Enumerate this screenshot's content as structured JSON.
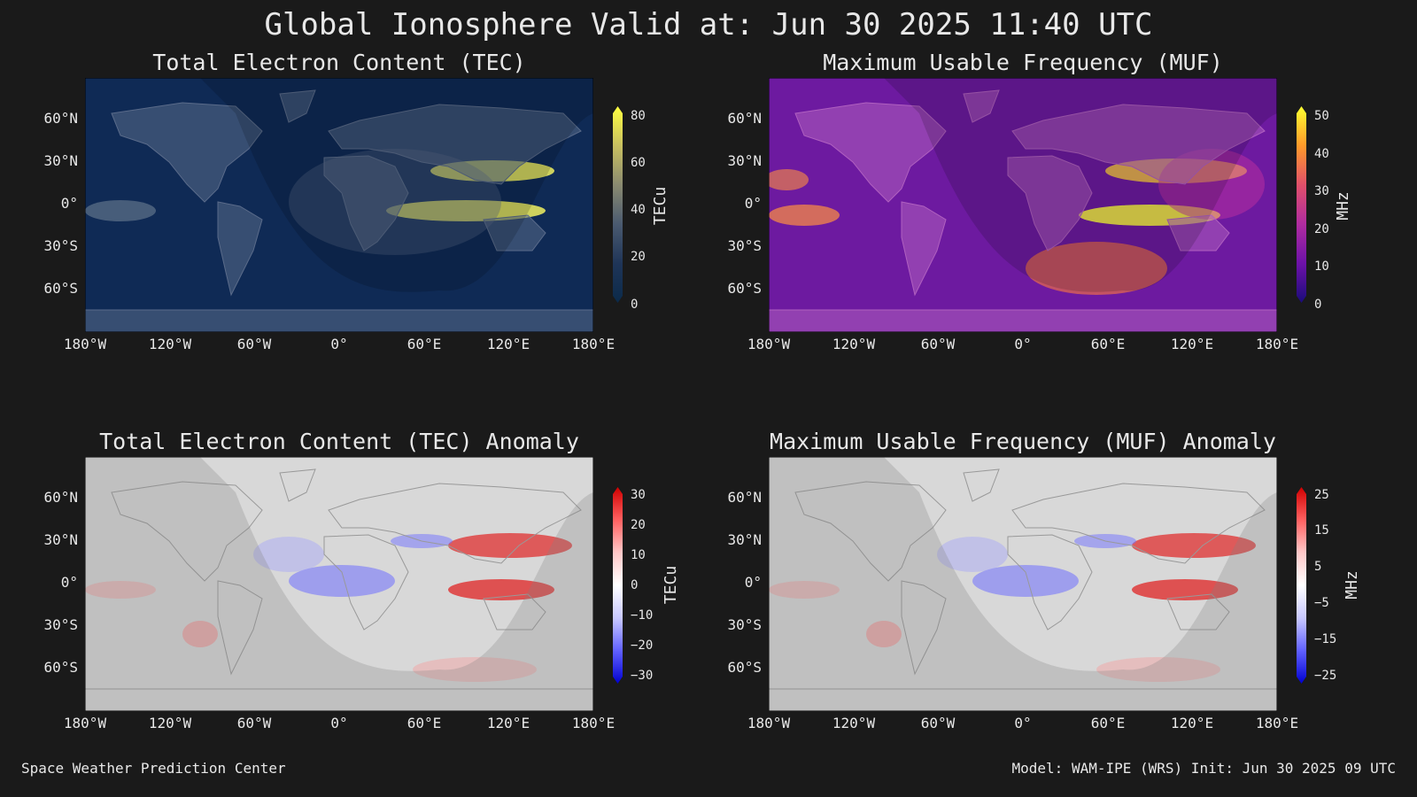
{
  "title": "Global Ionosphere Valid at: Jun 30 2025 11:40 UTC",
  "lat_ticks": [
    "60°N",
    "30°N",
    "0°",
    "30°S",
    "60°S"
  ],
  "lon_ticks": [
    "180°W",
    "120°W",
    "60°W",
    "0°",
    "60°E",
    "120°E",
    "180°E"
  ],
  "panels": [
    {
      "title": "Total Electron Content (TEC)",
      "unit": "TECu",
      "scale_ticks": [
        "80",
        "60",
        "40",
        "20",
        "0"
      ],
      "scale_colors": [
        "#ffff40",
        "#c8c060",
        "#8a8a70",
        "#4a5a70",
        "#1f3558",
        "#0b2a4a"
      ],
      "background": "#0f2a55",
      "land_color": "#5a6b8a"
    },
    {
      "title": "Maximum Usable Frequency (MUF)",
      "unit": "MHz",
      "scale_ticks": [
        "50",
        "40",
        "30",
        "20",
        "10",
        "0"
      ],
      "scale_colors": [
        "#ffff30",
        "#ff9a2a",
        "#e0506a",
        "#b02ca0",
        "#6d12a8",
        "#1a0c7a"
      ],
      "background": "#6d1aa0",
      "land_color": "#b060c0"
    },
    {
      "title": "Total Electron Content (TEC) Anomaly",
      "unit": "TECu",
      "scale_ticks": [
        "30",
        "20",
        "10",
        "0",
        "−10",
        "−20",
        "−30"
      ],
      "scale_colors": [
        "#d00000",
        "#ff6060",
        "#ffc8c8",
        "#ffffff",
        "#c8c8ff",
        "#6060ff",
        "#0000d0"
      ],
      "background": "#d8d8d8",
      "land_color": "#bdbdbd"
    },
    {
      "title": "Maximum Usable Frequency (MUF) Anomaly",
      "unit": "MHz",
      "scale_ticks": [
        "25",
        "15",
        "5",
        "−5",
        "−15",
        "−25"
      ],
      "scale_colors": [
        "#d00000",
        "#ff6060",
        "#ffc8c8",
        "#ffffff",
        "#c8c8ff",
        "#6060ff",
        "#0000d0"
      ],
      "background": "#d8d8d8",
      "land_color": "#bdbdbd"
    }
  ],
  "footer": {
    "left": "Space Weather Prediction Center",
    "right": "Model: WAM-IPE (WRS) Init: Jun 30 2025 09 UTC"
  }
}
